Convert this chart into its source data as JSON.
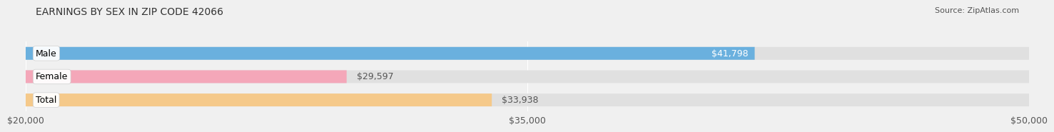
{
  "title": "EARNINGS BY SEX IN ZIP CODE 42066",
  "source": "Source: ZipAtlas.com",
  "categories": [
    "Male",
    "Female",
    "Total"
  ],
  "values": [
    41798,
    29597,
    33938
  ],
  "bar_colors": [
    "#6ab0de",
    "#f4a7b9",
    "#f5c98a"
  ],
  "label_colors": [
    "#ffffff",
    "#555555",
    "#555555"
  ],
  "bar_labels": [
    "$41,798",
    "$29,597",
    "$33,938"
  ],
  "xmin": 20000,
  "xmax": 50000,
  "xticks": [
    20000,
    35000,
    50000
  ],
  "xtick_labels": [
    "$20,000",
    "$35,000",
    "$50,000"
  ],
  "background_color": "#f0f0f0",
  "bar_bg_color": "#e0e0e0",
  "title_fontsize": 10,
  "source_fontsize": 8,
  "label_fontsize": 9,
  "tick_fontsize": 9,
  "category_fontsize": 9
}
